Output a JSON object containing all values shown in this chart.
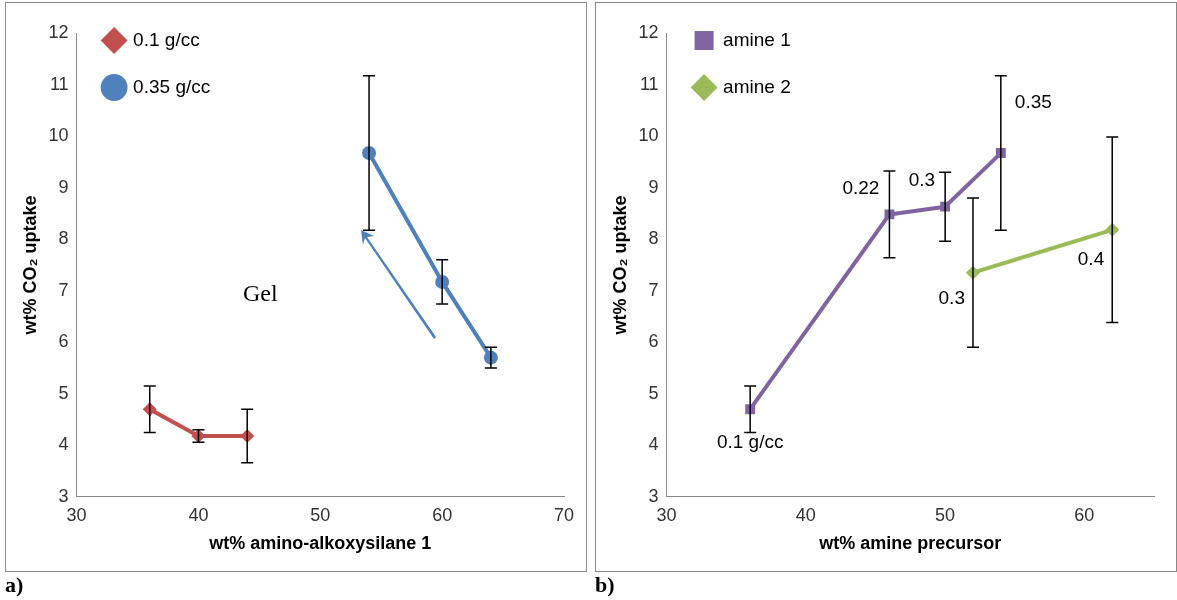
{
  "chart_data": [
    {
      "type": "line",
      "xlabel": "wt% amino-alkoxysilane 1",
      "ylabel": "wt% CO₂ uptake",
      "xlim": [
        30,
        70
      ],
      "xticks": [
        30,
        40,
        50,
        60,
        70
      ],
      "ylim": [
        3,
        12
      ],
      "yticks": [
        3,
        4,
        5,
        6,
        7,
        8,
        9,
        10,
        11,
        12
      ],
      "grid": false,
      "legend": "top left",
      "annotations": [
        "Gel",
        "a)"
      ],
      "series": [
        {
          "name": "0.1 g/cc",
          "color": "#c0504d",
          "marker": "diamond",
          "x": [
            36,
            40,
            44
          ],
          "values": [
            4.7,
            4.18,
            4.18
          ],
          "errors": [
            0.45,
            0.12,
            0.52
          ]
        },
        {
          "name": "0.35 g/cc",
          "color": "#4f81bd",
          "marker": "circle",
          "x": [
            54,
            60,
            64
          ],
          "values": [
            9.67,
            7.17,
            5.7
          ],
          "errors": [
            1.5,
            0.43,
            0.2
          ]
        }
      ]
    },
    {
      "type": "line",
      "xlabel": "wt% amine precursor",
      "ylabel": "wt% CO₂ uptake",
      "xlim": [
        30,
        65
      ],
      "xticks": [
        30,
        40,
        50,
        60
      ],
      "ylim": [
        3,
        12
      ],
      "yticks": [
        3,
        4,
        5,
        6,
        7,
        8,
        9,
        10,
        11,
        12
      ],
      "grid": false,
      "legend": "top left",
      "annotations": [
        {
          "text": "0.1 g/cc",
          "x": 36,
          "y": 4.7
        },
        {
          "text": "0.22",
          "x": 46,
          "y": 8.48
        },
        {
          "text": "0.3",
          "x": 50,
          "y": 8.63
        },
        {
          "text": "0.35",
          "x": 54,
          "y": 9.67
        },
        {
          "text": "0.3",
          "x": 52,
          "y": 7.35
        },
        {
          "text": "0.4",
          "x": 62,
          "y": 8.18
        },
        "b)"
      ],
      "series": [
        {
          "name": "amine 1",
          "color": "#8064a2",
          "marker": "square",
          "x": [
            36,
            46,
            50,
            54
          ],
          "values": [
            4.7,
            8.48,
            8.63,
            9.67
          ],
          "errors": [
            0.45,
            0.84,
            0.67,
            1.5
          ]
        },
        {
          "name": "amine 2",
          "color": "#9bbb59",
          "marker": "diamond",
          "x": [
            52,
            62
          ],
          "values": [
            7.35,
            8.18
          ],
          "errors": [
            1.45,
            1.8
          ]
        }
      ]
    }
  ]
}
